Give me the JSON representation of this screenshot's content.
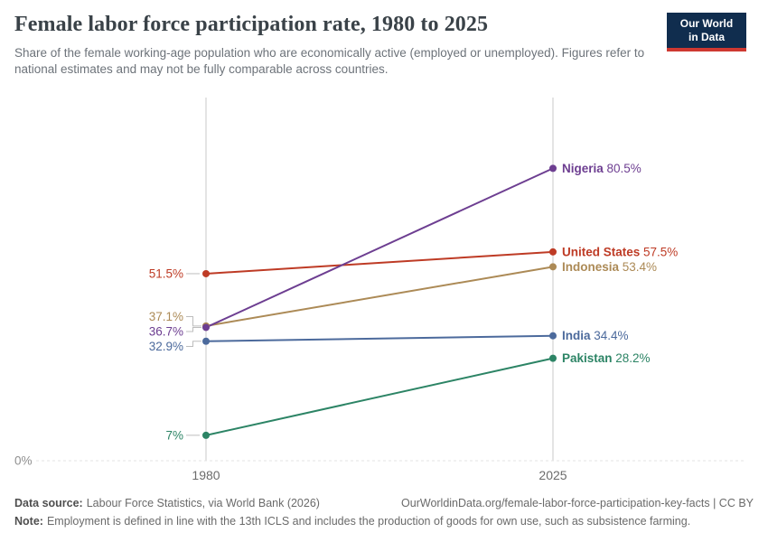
{
  "header": {
    "title": "Female labor force participation rate, 1980 to 2025",
    "subtitle": "Share of the female working-age population who are economically active (employed or unemployed). Figures refer to national estimates and may not be fully comparable across countries."
  },
  "logo": {
    "line1": "Our World",
    "line2": "in Data",
    "bg_color": "#102D4E",
    "accent_color": "#CE3831"
  },
  "chart_data": {
    "type": "line",
    "subtype": "slope",
    "x": [
      1980,
      2025
    ],
    "x_tick_labels": [
      "1980",
      "2025"
    ],
    "y_axis": {
      "min": 0,
      "max": 100,
      "zero_label": "0%",
      "grid": "zero-line-only"
    },
    "legend_position": "end-of-line-labels",
    "series": [
      {
        "name": "United States",
        "color": "#BE3B25",
        "values": [
          51.5,
          57.5
        ],
        "start_label": "51.5%",
        "end_label": "57.5%"
      },
      {
        "name": "Indonesia",
        "color": "#AC8A56",
        "values": [
          37.1,
          53.4
        ],
        "start_label": "37.1%",
        "end_label": "53.4%"
      },
      {
        "name": "India",
        "color": "#4C6A9C",
        "values": [
          32.9,
          34.4
        ],
        "start_label": "32.9%",
        "end_label": "34.4%"
      },
      {
        "name": "Pakistan",
        "color": "#2C8465",
        "values": [
          7.0,
          28.2
        ],
        "start_label": "7%",
        "end_label": "28.2%"
      },
      {
        "name": "Nigeria",
        "color": "#6D3E91",
        "values": [
          36.7,
          80.5
        ],
        "start_label": "36.7%",
        "end_label": "80.5%"
      }
    ]
  },
  "footer": {
    "datasource_label": "Data source:",
    "datasource_text": "Labour Force Statistics, via World Bank (2026)",
    "link_text": "OurWorldinData.org/female-labor-force-participation-key-facts | CC BY",
    "note_label": "Note:",
    "note_text": "Employment is defined in line with the 13th ICLS and includes the production of goods for own use, such as subsistence farming."
  }
}
